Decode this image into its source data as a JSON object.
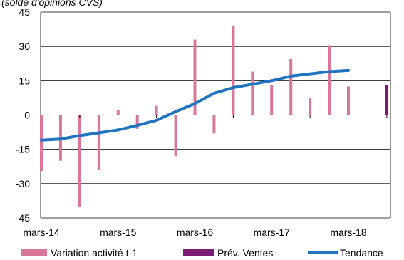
{
  "chart_data": {
    "type": "bar",
    "title": "(solde d'opinions CVS)",
    "xlabel": "",
    "ylabel": "",
    "ylim": [
      -45,
      45
    ],
    "yticks": [
      -45,
      -30,
      -15,
      0,
      15,
      30,
      45
    ],
    "x_tick_labels": [
      "mars-14",
      "mars-15",
      "mars-16",
      "mars-17",
      "mars-18"
    ],
    "grid": true,
    "legend_position": "bottom",
    "series": [
      {
        "name": "Variation activité t-1",
        "type": "bar",
        "color": "#d9779b",
        "points": [
          {
            "x": "2014-03",
            "y": -24.5
          },
          {
            "x": "2014-06",
            "y": -20
          },
          {
            "x": "2014-09",
            "y": -40
          },
          {
            "x": "2014-12",
            "y": -24
          },
          {
            "x": "2015-03",
            "y": 2
          },
          {
            "x": "2015-06",
            "y": -6
          },
          {
            "x": "2015-09",
            "y": 4
          },
          {
            "x": "2015-12",
            "y": -18
          },
          {
            "x": "2016-03",
            "y": 33
          },
          {
            "x": "2016-06",
            "y": -8
          },
          {
            "x": "2016-09",
            "y": 39
          },
          {
            "x": "2016-12",
            "y": 19
          },
          {
            "x": "2017-03",
            "y": 13
          },
          {
            "x": "2017-06",
            "y": 24.5
          },
          {
            "x": "2017-09",
            "y": 7.5
          },
          {
            "x": "2017-12",
            "y": 30.5
          },
          {
            "x": "2018-03",
            "y": 12.5
          }
        ]
      },
      {
        "name": "Prév. Ventes",
        "type": "bar",
        "color": "#7b1b72",
        "points": [
          {
            "x": "2018-09",
            "y": 13
          }
        ]
      },
      {
        "name": "Tendance",
        "type": "line",
        "color": "#1f73bf",
        "points": [
          {
            "x": "2014-03",
            "y": -11
          },
          {
            "x": "2014-06",
            "y": -10.5
          },
          {
            "x": "2014-09",
            "y": -9
          },
          {
            "x": "2014-12",
            "y": -7.8
          },
          {
            "x": "2015-03",
            "y": -6.5
          },
          {
            "x": "2015-06",
            "y": -4.5
          },
          {
            "x": "2015-09",
            "y": -2.3
          },
          {
            "x": "2015-12",
            "y": 1.5
          },
          {
            "x": "2016-03",
            "y": 5
          },
          {
            "x": "2016-06",
            "y": 9.5
          },
          {
            "x": "2016-09",
            "y": 12
          },
          {
            "x": "2016-12",
            "y": 13.5
          },
          {
            "x": "2017-03",
            "y": 15
          },
          {
            "x": "2017-06",
            "y": 17
          },
          {
            "x": "2017-09",
            "y": 18
          },
          {
            "x": "2017-12",
            "y": 19
          },
          {
            "x": "2018-03",
            "y": 19.5
          }
        ]
      }
    ]
  }
}
